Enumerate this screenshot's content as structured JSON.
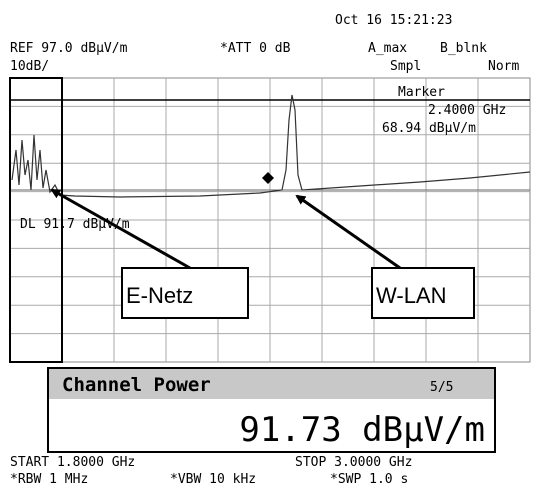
{
  "header": {
    "datetime": "Oct 16 15:21:23",
    "ref": "REF 97.0 dBµV/m",
    "att": "*ATT 0 dB",
    "trace_a": "A_max",
    "trace_b": "B_blnk",
    "scale": "10dB/",
    "detector": "Smpl",
    "mode": "Norm"
  },
  "marker": {
    "label": "Marker",
    "freq": "2.4000 GHz",
    "level": "68.94 dBµV/m"
  },
  "display_line": "DL 91.7 dBµV/m",
  "callouts": [
    "E-Netz",
    "W-LAN"
  ],
  "channel_power": {
    "title": "Channel Power",
    "page": "5/5",
    "value": "91.73 dBµV/m"
  },
  "footer": {
    "start": "START 1.8000 GHz",
    "stop": "STOP 3.0000 GHz",
    "rbw": "*RBW 1 MHz",
    "vbw": "*VBW 10 kHz",
    "swp": "*SWP 1.0 s"
  }
}
